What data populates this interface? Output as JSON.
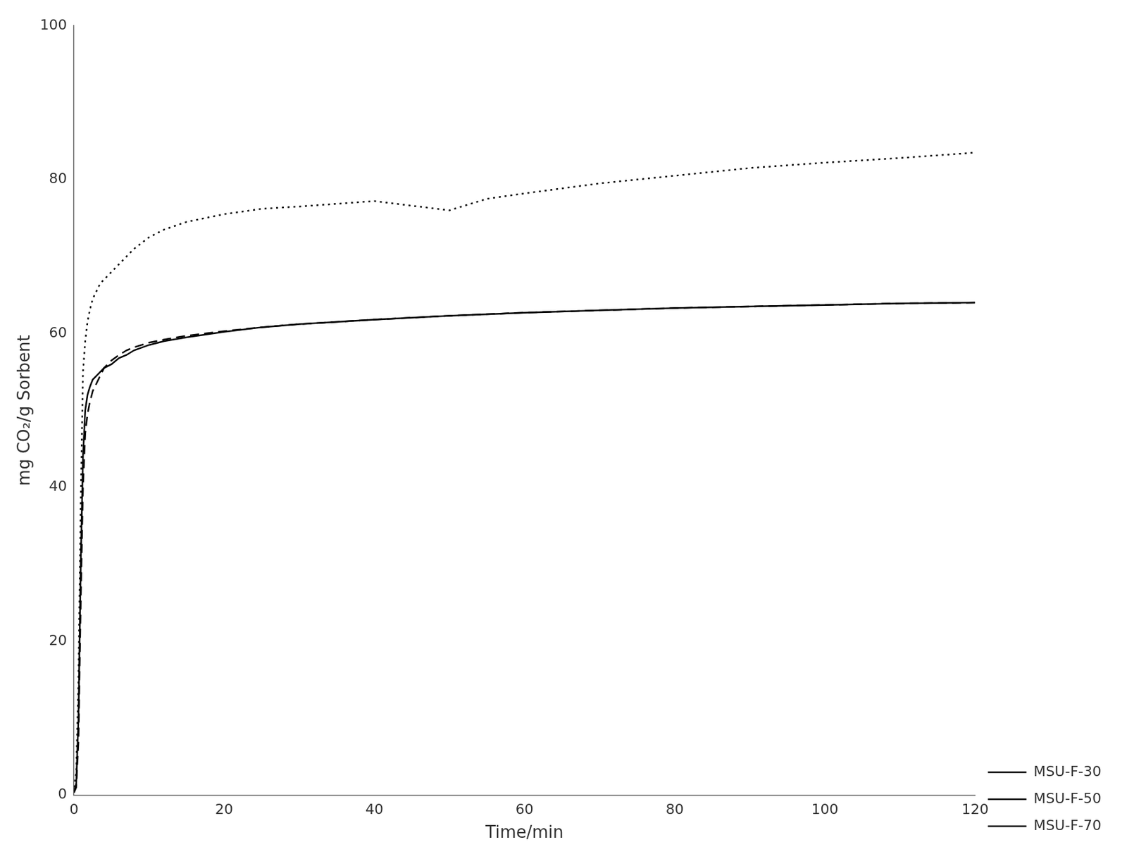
{
  "chart_data": {
    "type": "line",
    "xlabel": "Time/min",
    "ylabel": "mg CO₂/g Sorbent",
    "xlim": [
      0,
      120
    ],
    "ylim": [
      0,
      100
    ],
    "xticks": [
      0,
      20,
      40,
      60,
      80,
      100,
      120
    ],
    "yticks": [
      0,
      20,
      40,
      60,
      80,
      100
    ],
    "grid": false,
    "legend": "lower right",
    "series": [
      {
        "name": "MSU-F-30",
        "color": "#000000",
        "line_style": "solid",
        "x": [
          0,
          0.3,
          0.6,
          0.9,
          1.2,
          1.5,
          1.8,
          2.1,
          2.5,
          3.0,
          3.5,
          4.0,
          5.0,
          6.0,
          7.0,
          8.0,
          10.0,
          12.0,
          15.0,
          20.0,
          25.0,
          30.0,
          40.0,
          50.0,
          60.0,
          70.0,
          80.0,
          90.0,
          100.0,
          110.0,
          120.0
        ],
        "values": [
          0.5,
          1.5,
          10.0,
          30.0,
          44.0,
          50.0,
          52.0,
          53.0,
          54.0,
          54.5,
          55.0,
          55.5,
          56.0,
          56.8,
          57.2,
          57.8,
          58.5,
          59.0,
          59.5,
          60.2,
          60.8,
          61.2,
          61.8,
          62.3,
          62.7,
          63.0,
          63.3,
          63.5,
          63.7,
          63.9,
          64.0
        ]
      },
      {
        "name": "MSU-F-50",
        "color": "#000000",
        "line_style": "dotted",
        "x": [
          0,
          0.3,
          0.6,
          0.9,
          1.2,
          1.5,
          1.8,
          2.1,
          2.5,
          3.0,
          3.5,
          4.0,
          5.0,
          6.0,
          7.0,
          8.0,
          10.0,
          12.0,
          15.0,
          20.0,
          25.0,
          30.0,
          40.0,
          50.0,
          55.0,
          60.0,
          70.0,
          80.0,
          90.0,
          100.0,
          110.0,
          120.0
        ],
        "values": [
          1.0,
          3.0,
          15.0,
          38.0,
          55.0,
          59.0,
          61.5,
          63.0,
          64.5,
          65.5,
          66.5,
          67.0,
          68.0,
          69.0,
          70.0,
          71.0,
          72.5,
          73.5,
          74.5,
          75.5,
          76.2,
          76.5,
          77.2,
          76.0,
          77.5,
          78.2,
          79.5,
          80.5,
          81.5,
          82.2,
          82.8,
          83.5
        ]
      },
      {
        "name": "MSU-F-70",
        "color": "#000000",
        "line_style": "dashed",
        "x": [
          0,
          0.3,
          0.6,
          0.9,
          1.2,
          1.5,
          1.8,
          2.1,
          2.5,
          3.0,
          3.5,
          4.0,
          5.0,
          6.0,
          7.0,
          8.0,
          10.0,
          12.0,
          15.0,
          20.0,
          25.0,
          30.0,
          40.0,
          50.0,
          60.0,
          70.0,
          80.0,
          90.0,
          100.0,
          110.0,
          120.0
        ],
        "values": [
          0.3,
          1.0,
          7.0,
          25.0,
          40.0,
          47.0,
          49.5,
          51.0,
          52.5,
          53.5,
          54.5,
          55.5,
          56.5,
          57.2,
          57.8,
          58.2,
          58.8,
          59.2,
          59.7,
          60.3,
          60.8,
          61.2,
          61.8,
          62.3,
          62.7,
          63.0,
          63.3,
          63.5,
          63.7,
          63.9,
          64.0
        ]
      }
    ]
  }
}
